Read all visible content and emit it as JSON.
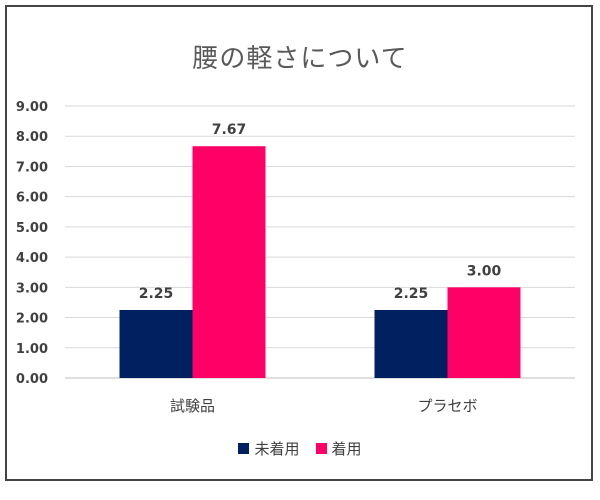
{
  "chart_data": {
    "type": "bar",
    "title": "腰の軽さについて",
    "categories": [
      "試験品",
      "プラセボ"
    ],
    "series": [
      {
        "name": "未着用",
        "values": [
          2.25,
          2.25
        ],
        "labels": [
          "2.25",
          "2.25"
        ],
        "color": "#002060"
      },
      {
        "name": "着用",
        "values": [
          7.67,
          3.0
        ],
        "labels": [
          "7.67",
          "3.00"
        ],
        "color": "#FF0066"
      }
    ],
    "ylim": [
      0,
      9
    ],
    "yticks": [
      "0.00",
      "1.00",
      "2.00",
      "3.00",
      "4.00",
      "5.00",
      "6.00",
      "7.00",
      "8.00",
      "9.00"
    ],
    "grid": true,
    "legend_position": "bottom"
  }
}
